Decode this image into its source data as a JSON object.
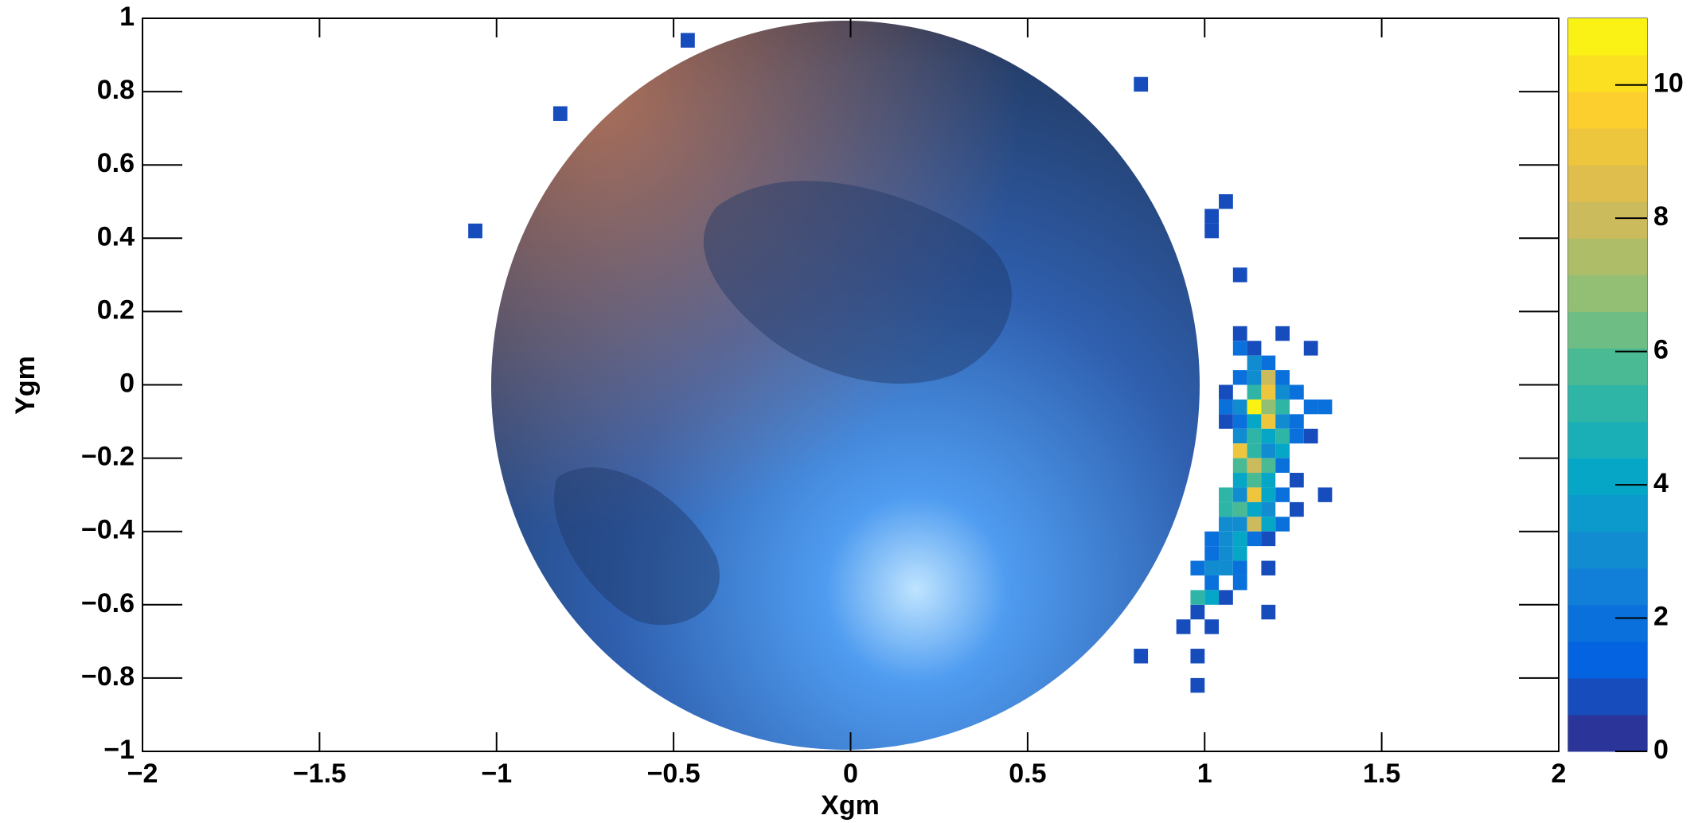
{
  "chart_data": {
    "type": "heatmap",
    "x_label": "Xgm",
    "y_label": "Ygm",
    "xlim": [
      -2,
      2
    ],
    "ylim": [
      -1,
      1
    ],
    "zlim": [
      0,
      11
    ],
    "xticks": [
      {
        "value": -2,
        "label": "−2"
      },
      {
        "value": -1.5,
        "label": "−1.5"
      },
      {
        "value": -1,
        "label": "−1"
      },
      {
        "value": -0.5,
        "label": "−0.5"
      },
      0,
      0.5,
      1,
      1.5,
      2
    ],
    "yticks": [
      {
        "value": -1,
        "label": "−1"
      },
      {
        "value": -0.8,
        "label": "−0.8"
      },
      {
        "value": -0.6,
        "label": "−0.6"
      },
      {
        "value": -0.4,
        "label": "−0.4"
      },
      {
        "value": -0.2,
        "label": "−0.2"
      },
      0,
      0.2,
      0.4,
      0.6,
      0.8,
      1
    ],
    "zticks": [
      0,
      2,
      4,
      6,
      8,
      10
    ],
    "colormap": [
      "#352a87",
      "#0363e1",
      "#1485d4",
      "#06a7c6",
      "#38b99e",
      "#92bf73",
      "#d9ba56",
      "#fcce2e",
      "#f9fb0e"
    ],
    "x": [
      -0.46,
      -0.82,
      -1.06,
      0.82,
      1.06,
      1.02,
      1.02,
      1.1,
      0.82,
      0.98,
      0.98,
      0.94,
      1.02,
      0.98,
      1.18,
      1.34,
      1.1,
      1.22,
      1.1,
      1.14,
      1.3,
      1.14,
      1.18,
      1.1,
      1.14,
      1.18,
      1.22,
      1.06,
      1.14,
      1.18,
      1.22,
      1.26,
      1.06,
      1.1,
      1.14,
      1.18,
      1.22,
      1.3,
      1.34,
      1.06,
      1.1,
      1.14,
      1.18,
      1.22,
      1.26,
      1.1,
      1.14,
      1.18,
      1.22,
      1.26,
      1.3,
      1.1,
      1.14,
      1.18,
      1.22,
      1.1,
      1.14,
      1.18,
      1.22,
      1.1,
      1.14,
      1.18,
      1.26,
      1.06,
      1.1,
      1.14,
      1.18,
      1.22,
      1.06,
      1.1,
      1.14,
      1.18,
      1.26,
      1.06,
      1.1,
      1.14,
      1.18,
      1.22,
      1.02,
      1.06,
      1.1,
      1.14,
      1.18,
      1.02,
      1.06,
      1.1,
      0.98,
      1.02,
      1.06,
      1.1,
      1.18,
      1.02,
      1.1,
      0.98,
      1.02,
      1.06
    ],
    "y": [
      0.94,
      0.74,
      0.42,
      0.82,
      0.5,
      0.46,
      0.42,
      0.3,
      -0.74,
      -0.74,
      -0.82,
      -0.66,
      -0.66,
      -0.62,
      -0.62,
      -0.3,
      0.14,
      0.14,
      0.1,
      0.1,
      0.1,
      0.06,
      0.06,
      0.02,
      0.02,
      0.02,
      0.02,
      -0.02,
      -0.02,
      -0.02,
      -0.02,
      -0.02,
      -0.06,
      -0.06,
      -0.06,
      -0.06,
      -0.06,
      -0.06,
      -0.06,
      -0.1,
      -0.1,
      -0.1,
      -0.1,
      -0.1,
      -0.1,
      -0.14,
      -0.14,
      -0.14,
      -0.14,
      -0.14,
      -0.14,
      -0.18,
      -0.18,
      -0.18,
      -0.18,
      -0.22,
      -0.22,
      -0.22,
      -0.22,
      -0.26,
      -0.26,
      -0.26,
      -0.26,
      -0.3,
      -0.3,
      -0.3,
      -0.3,
      -0.3,
      -0.34,
      -0.34,
      -0.34,
      -0.34,
      -0.34,
      -0.38,
      -0.38,
      -0.38,
      -0.38,
      -0.38,
      -0.42,
      -0.42,
      -0.42,
      -0.42,
      -0.42,
      -0.46,
      -0.46,
      -0.46,
      -0.5,
      -0.5,
      -0.5,
      -0.5,
      -0.5,
      -0.54,
      -0.54,
      -0.58,
      -0.58,
      -0.58
    ],
    "values": [
      1,
      1,
      1,
      1,
      1,
      1,
      1,
      1,
      1,
      1,
      1,
      1,
      1,
      1,
      1,
      1,
      1,
      1,
      2,
      1,
      1,
      3,
      2,
      2,
      3,
      8,
      2,
      1,
      5,
      9,
      3,
      2,
      2,
      3,
      11,
      7,
      5,
      2,
      2,
      1,
      2,
      4,
      9,
      3,
      2,
      3,
      5,
      4,
      5,
      2,
      1,
      9,
      5,
      3,
      4,
      6,
      8,
      6,
      2,
      4,
      6,
      4,
      1,
      5,
      3,
      9,
      4,
      2,
      5,
      6,
      4,
      3,
      1,
      3,
      3,
      8,
      4,
      2,
      2,
      3,
      4,
      2,
      1,
      2,
      3,
      4,
      2,
      3,
      3,
      2,
      1,
      2,
      2,
      5,
      4,
      1
    ]
  }
}
